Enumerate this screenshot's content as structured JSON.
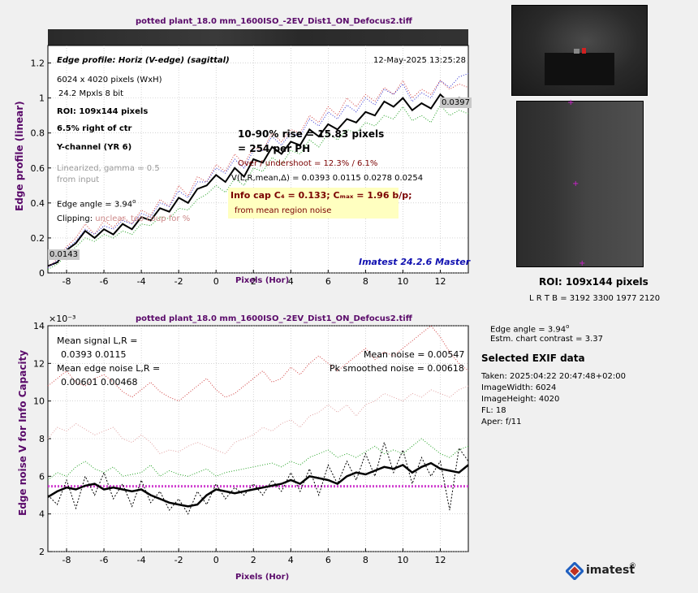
{
  "top": {
    "title": "potted plant_18.0 mm_1600ISO_-2EV_Dist1_ON_Defocus2.tiff",
    "annotations": {
      "heading": "Edge profile: Horiz (V-edge) (sagittal)",
      "date": "12-May-2025 13:25:28",
      "pixels": "6024 x 4020 pixels (WxH)",
      "mpxls": "24.2 Mpxls   8 bit",
      "roi": "ROI:  109x144 pixels",
      "right_of_ctr": "6.5% right of ctr",
      "channel": "Y-channel  (YR 6)",
      "linearized": "Linearized, gamma = 0.5",
      "from_input": "from input",
      "edge_angle": "Edge angle = 3.94",
      "degree": "o",
      "clipping": "Clipping:",
      "clipping_note": "unclear, too coup for %",
      "rise": "10-90% rise = 15.83 pixels",
      "ph": "=    254 per PH",
      "overshoot": "Over / undershoot = 12.3% /  6.1%",
      "vlr": "V(L,R,mean,Δ) = 0.0393  0.0115  0.0278  0.0254",
      "infocap": "Info cap C₄ = 0.133;  Cₘₐₓ = 1.96 b/p;",
      "infocap_note": "from mean region noise",
      "left_box": "0.0143",
      "right_box": "0.0397",
      "imatest": "Imatest 24.2.6 Master"
    },
    "xlabel": "Pixels (Hor)",
    "ylabel": "Edge profile (linear)"
  },
  "bottom": {
    "title": "potted plant_18.0 mm_1600ISO_-2EV_Dist1_ON_Defocus2.tiff",
    "exponent": "×10⁻³",
    "annotations": {
      "mean_signal": "Mean signal L,R =",
      "mean_signal_vals": "0.0393  0.0115",
      "mean_edge_noise": "Mean edge noise L,R =",
      "mean_edge_noise_vals": "0.00601  0.00468",
      "mean_noise": "Mean noise = 0.00547",
      "pk_noise": "Pk smoothed noise = 0.00618"
    },
    "xlabel": "Pixels (Hor)",
    "ylabel": "Edge noise V for Info Capacity"
  },
  "side": {
    "roi": "ROI:  109x144 pixels",
    "lrtb": "L R  T B = 3192 3300  1977 2120",
    "edge_angle": "Edge angle = 3.94",
    "degree": "o",
    "contrast": "Estm. chart contrast = 3.37",
    "exif_title": "Selected EXIF data",
    "exif": [
      "Taken: 2025:04:22 20:47:48+02:00",
      "ImageWidth:  6024",
      "ImageHeight:  4020",
      "FL:   18",
      "Aper:  f/11"
    ],
    "logo": "imatest",
    "logo_reg": "®"
  },
  "colors": {
    "title": "#5a0a6a",
    "main_line": "#000000",
    "red_line": "#d04040",
    "green_line": "#20a020",
    "blue_line": "#3030d0",
    "pink_line": "#e0a0a0",
    "mean_noise_line": "#d040d0",
    "infocap_bg": "#ffffc0",
    "imatest_text": "#1010b0"
  },
  "chart_data": [
    {
      "type": "line",
      "title": "potted plant_18.0 mm_1600ISO_-2EV_Dist1_ON_Defocus2.tiff",
      "xlabel": "Pixels (Hor)",
      "ylabel": "Edge profile (linear)",
      "xlim": [
        -9,
        13.5
      ],
      "ylim": [
        0,
        1.3
      ],
      "xticks": [
        -8,
        -6,
        -4,
        -2,
        0,
        2,
        4,
        6,
        8,
        10,
        12
      ],
      "yticks": [
        0,
        0.2,
        0.4,
        0.6,
        0.8,
        1,
        1.2
      ],
      "x": [
        -9,
        -8.5,
        -8,
        -7.5,
        -7,
        -6.5,
        -6,
        -5.5,
        -5,
        -4.5,
        -4,
        -3.5,
        -3,
        -2.5,
        -2,
        -1.5,
        -1,
        -0.5,
        0,
        0.5,
        1,
        1.5,
        2,
        2.5,
        3,
        3.5,
        4,
        4.5,
        5,
        5.5,
        6,
        6.5,
        7,
        7.5,
        8,
        8.5,
        9,
        9.5,
        10,
        10.5,
        11,
        11.5,
        12,
        12.5,
        13,
        13.5
      ],
      "series": [
        {
          "values": [
            0.04,
            0.06,
            0.13,
            0.17,
            0.24,
            0.2,
            0.25,
            0.22,
            0.28,
            0.25,
            0.32,
            0.3,
            0.37,
            0.35,
            0.43,
            0.4,
            0.48,
            0.5,
            0.56,
            0.52,
            0.6,
            0.55,
            0.65,
            0.63,
            0.72,
            0.68,
            0.75,
            0.73,
            0.82,
            0.78,
            0.85,
            0.82,
            0.88,
            0.86,
            0.92,
            0.9,
            0.98,
            0.95,
            1.0,
            0.93,
            0.97,
            0.94,
            1.02,
            0.97,
            1.0,
            0.99
          ]
        },
        {
          "values": [
            0.03,
            0.08,
            0.15,
            0.2,
            0.28,
            0.22,
            0.3,
            0.26,
            0.32,
            0.28,
            0.36,
            0.33,
            0.42,
            0.38,
            0.5,
            0.44,
            0.55,
            0.52,
            0.62,
            0.58,
            0.68,
            0.62,
            0.72,
            0.7,
            0.8,
            0.75,
            0.82,
            0.8,
            0.9,
            0.86,
            0.95,
            0.9,
            1.0,
            0.95,
            1.02,
            0.98,
            1.06,
            1.02,
            1.1,
            1.0,
            1.05,
            1.02,
            1.1,
            1.05,
            1.08,
            1.06
          ]
        },
        {
          "values": [
            0.02,
            0.05,
            0.1,
            0.15,
            0.2,
            0.18,
            0.22,
            0.2,
            0.24,
            0.22,
            0.28,
            0.27,
            0.32,
            0.31,
            0.37,
            0.36,
            0.42,
            0.45,
            0.5,
            0.46,
            0.54,
            0.5,
            0.6,
            0.58,
            0.66,
            0.62,
            0.7,
            0.68,
            0.76,
            0.72,
            0.8,
            0.76,
            0.82,
            0.8,
            0.86,
            0.84,
            0.9,
            0.88,
            0.95,
            0.87,
            0.9,
            0.86,
            0.96,
            0.9,
            0.93,
            0.91
          ]
        },
        {
          "values": [
            0.03,
            0.07,
            0.14,
            0.18,
            0.25,
            0.22,
            0.27,
            0.25,
            0.3,
            0.28,
            0.34,
            0.32,
            0.4,
            0.38,
            0.47,
            0.43,
            0.52,
            0.52,
            0.6,
            0.57,
            0.65,
            0.6,
            0.7,
            0.7,
            0.78,
            0.73,
            0.8,
            0.78,
            0.88,
            0.84,
            0.92,
            0.88,
            0.96,
            0.92,
            1.0,
            0.96,
            1.05,
            1.02,
            1.08,
            0.98,
            1.03,
            1.0,
            1.1,
            1.06,
            1.12,
            1.14
          ]
        }
      ]
    },
    {
      "type": "line",
      "title": "potted plant_18.0 mm_1600ISO_-2EV_Dist1_ON_Defocus2.tiff",
      "xlabel": "Pixels (Hor)",
      "ylabel": "Edge noise V for Info Capacity",
      "xlim": [
        -9,
        13.5
      ],
      "ylim": [
        2,
        14
      ],
      "yscale_note": "x10^-3",
      "xticks": [
        -8,
        -6,
        -4,
        -2,
        0,
        2,
        4,
        6,
        8,
        10,
        12
      ],
      "yticks": [
        2,
        4,
        6,
        8,
        10,
        12,
        14
      ],
      "x": [
        -9,
        -8.5,
        -8,
        -7.5,
        -7,
        -6.5,
        -6,
        -5.5,
        -5,
        -4.5,
        -4,
        -3.5,
        -3,
        -2.5,
        -2,
        -1.5,
        -1,
        -0.5,
        0,
        0.5,
        1,
        1.5,
        2,
        2.5,
        3,
        3.5,
        4,
        4.5,
        5,
        5.5,
        6,
        6.5,
        7,
        7.5,
        8,
        8.5,
        9,
        9.5,
        10,
        10.5,
        11,
        11.5,
        12,
        12.5,
        13,
        13.5
      ],
      "mean_noise": 5.47,
      "series": [
        {
          "values": [
            4.9,
            5.2,
            5.4,
            5.3,
            5.5,
            5.6,
            5.3,
            5.4,
            5.3,
            5.2,
            5.3,
            5.0,
            4.8,
            4.6,
            4.5,
            4.4,
            4.5,
            5.0,
            5.3,
            5.2,
            5.1,
            5.2,
            5.3,
            5.4,
            5.5,
            5.6,
            5.8,
            5.6,
            6.0,
            5.9,
            5.8,
            5.6,
            6.0,
            6.2,
            6.1,
            6.3,
            6.5,
            6.4,
            6.6,
            6.2,
            6.5,
            6.7,
            6.4,
            6.3,
            6.2,
            6.6
          ]
        },
        {
          "values": [
            5.0,
            4.5,
            5.8,
            4.3,
            6.0,
            5.0,
            6.2,
            4.8,
            5.6,
            4.4,
            5.8,
            4.6,
            5.2,
            4.2,
            4.8,
            4.0,
            5.2,
            4.5,
            5.6,
            4.8,
            5.4,
            5.0,
            5.6,
            5.0,
            5.8,
            5.2,
            6.2,
            5.2,
            6.4,
            5.0,
            6.6,
            5.6,
            6.8,
            5.8,
            7.2,
            6.0,
            7.8,
            6.2,
            7.4,
            5.6,
            7.0,
            6.0,
            6.8,
            4.2,
            7.5,
            6.8
          ]
        },
        {
          "values": [
            5.8,
            6.2,
            6.0,
            6.5,
            6.8,
            6.4,
            6.2,
            6.5,
            6.0,
            6.1,
            6.2,
            6.6,
            6.0,
            6.3,
            6.1,
            6.0,
            6.2,
            6.4,
            6.0,
            6.2,
            6.3,
            6.4,
            6.5,
            6.6,
            6.7,
            6.5,
            6.8,
            6.6,
            7.0,
            7.2,
            7.4,
            7.0,
            7.2,
            7.0,
            7.3,
            7.6,
            7.2,
            7.4,
            7.2,
            7.6,
            8.0,
            7.6,
            7.2,
            7.0,
            7.4,
            7.6
          ]
        },
        {
          "values": [
            8.0,
            8.6,
            8.4,
            8.8,
            8.5,
            8.2,
            8.4,
            8.6,
            8.0,
            7.8,
            8.2,
            7.8,
            7.2,
            7.4,
            7.3,
            7.6,
            7.8,
            7.6,
            7.4,
            7.2,
            7.8,
            8.0,
            8.2,
            8.6,
            8.4,
            8.8,
            9.0,
            8.6,
            9.2,
            9.4,
            9.8,
            9.4,
            9.8,
            9.2,
            9.8,
            10.0,
            10.4,
            10.2,
            10.0,
            10.4,
            10.2,
            10.6,
            10.4,
            10.2,
            10.6,
            10.8
          ]
        },
        {
          "values": [
            10.8,
            11.2,
            11.6,
            11.0,
            10.8,
            11.2,
            11.4,
            11.0,
            10.5,
            10.2,
            10.6,
            11.0,
            10.5,
            10.2,
            10.0,
            10.4,
            10.8,
            11.2,
            10.6,
            10.2,
            10.4,
            10.8,
            11.2,
            11.6,
            11.0,
            11.2,
            11.8,
            11.4,
            12.0,
            12.4,
            12.0,
            11.6,
            12.0,
            12.4,
            12.8,
            12.2,
            12.6,
            12.4,
            12.8,
            13.2,
            13.6,
            14.0,
            13.4,
            12.6,
            12.0,
            11.6
          ]
        }
      ]
    }
  ]
}
